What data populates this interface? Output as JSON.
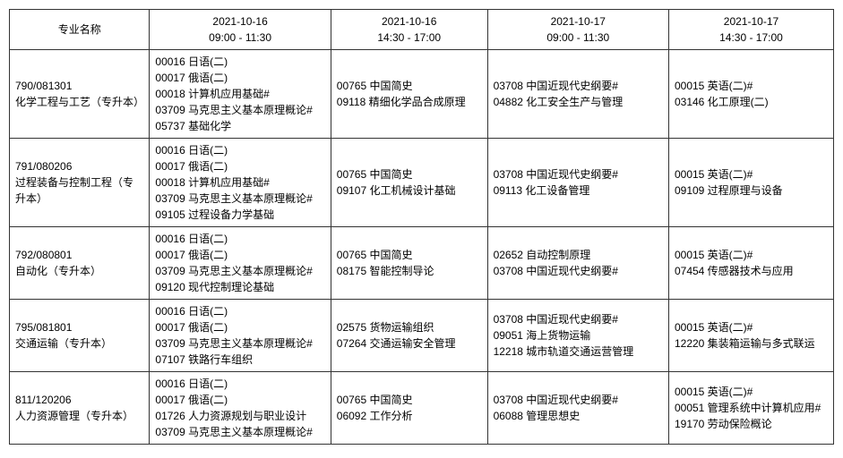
{
  "header": {
    "col0": "专业名称",
    "col1": {
      "date": "2021-10-16",
      "time": "09:00 - 11:30"
    },
    "col2": {
      "date": "2021-10-16",
      "time": "14:30 - 17:00"
    },
    "col3": {
      "date": "2021-10-17",
      "time": "09:00 - 11:30"
    },
    "col4": {
      "date": "2021-10-17",
      "time": "14:30 - 17:00"
    }
  },
  "rows": [
    {
      "major": {
        "code": "790/081301",
        "name": "化学工程与工艺（专升本）"
      },
      "slot1": [
        "00016 日语(二)",
        "00017 俄语(二)",
        "00018 计算机应用基础#",
        "03709 马克思主义基本原理概论#",
        "05737 基础化学"
      ],
      "slot2": [
        "00765 中国简史",
        "09118 精细化学品合成原理"
      ],
      "slot3": [
        "03708 中国近现代史纲要#",
        "04882 化工安全生产与管理"
      ],
      "slot4": [
        "00015 英语(二)#",
        "03146 化工原理(二)"
      ]
    },
    {
      "major": {
        "code": "791/080206",
        "name": "过程装备与控制工程（专升本）"
      },
      "slot1": [
        "00016 日语(二)",
        "00017 俄语(二)",
        "00018 计算机应用基础#",
        "03709 马克思主义基本原理概论#",
        "09105 过程设备力学基础"
      ],
      "slot2": [
        "00765 中国简史",
        "09107 化工机械设计基础"
      ],
      "slot3": [
        "03708 中国近现代史纲要#",
        "09113 化工设备管理"
      ],
      "slot4": [
        "00015 英语(二)#",
        "09109 过程原理与设备"
      ]
    },
    {
      "major": {
        "code": "792/080801",
        "name": "自动化（专升本）"
      },
      "slot1": [
        "00016 日语(二)",
        "00017 俄语(二)",
        "03709 马克思主义基本原理概论#",
        "09120 现代控制理论基础"
      ],
      "slot2": [
        "00765 中国简史",
        "08175 智能控制导论"
      ],
      "slot3": [
        "02652 自动控制原理",
        "03708 中国近现代史纲要#"
      ],
      "slot4": [
        "00015 英语(二)#",
        "07454 传感器技术与应用"
      ]
    },
    {
      "major": {
        "code": "795/081801",
        "name": "交通运输（专升本）"
      },
      "slot1": [
        "00016 日语(二)",
        "00017 俄语(二)",
        "03709 马克思主义基本原理概论#",
        "07107 铁路行车组织"
      ],
      "slot2": [
        "02575 货物运输组织",
        "07264 交通运输安全管理"
      ],
      "slot3": [
        "03708 中国近现代史纲要#",
        "09051 海上货物运输",
        "12218 城市轨道交通运营管理"
      ],
      "slot4": [
        "00015 英语(二)#",
        "12220 集装箱运输与多式联运"
      ]
    },
    {
      "major": {
        "code": "811/120206",
        "name": "人力资源管理（专升本）"
      },
      "slot1": [
        "00016 日语(二)",
        "00017 俄语(二)",
        "01726 人力资源规划与职业设计",
        "03709 马克思主义基本原理概论#"
      ],
      "slot2": [
        "00765 中国简史",
        "06092 工作分析"
      ],
      "slot3": [
        "03708 中国近现代史纲要#",
        "06088 管理思想史"
      ],
      "slot4": [
        "00015 英语(二)#",
        "00051 管理系统中计算机应用#",
        "19170 劳动保险概论"
      ]
    }
  ]
}
